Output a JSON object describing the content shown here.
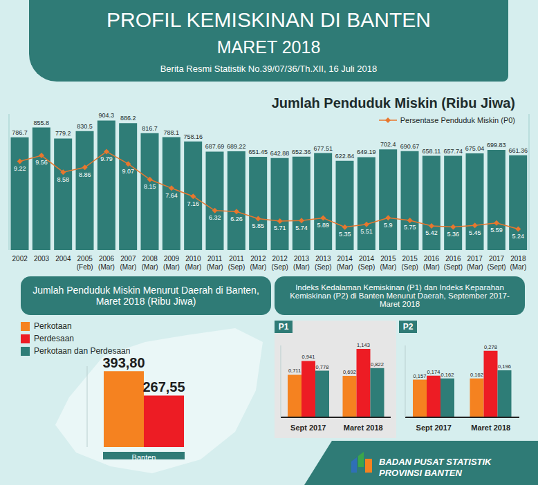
{
  "header": {
    "title": "PROFIL KEMISKINAN DI BANTEN",
    "subtitle": "MARET 2018",
    "source": "Berita Resmi Statistik No.39/07/36/Th.XII, 16 Juli 2018"
  },
  "index_panel": {
    "title": "Indeks Kedalaman Kemiskinan (P1) dan Indeks Keparahan Kemiskinan (P2) di Banten Menurut Daerah, September 2017-Maret 2018"
  },
  "footer": {
    "lines": [
      "BADAN PUSAT STATISTIK",
      "PROVINSI BANTEN"
    ]
  },
  "chart_data": [
    {
      "type": "bar",
      "title": "Jumlah Penduduk Miskin (Ribu Jiwa)",
      "categories": [
        "2002",
        "2003",
        "2004",
        "2005 (Feb)",
        "2006 (Mar)",
        "2007 (Mar)",
        "2008 (Mar)",
        "2009 (Mar)",
        "2010 (Mar)",
        "2011 (Mar)",
        "2011 (Sep)",
        "2012 (Mar)",
        "2012 (Sep)",
        "2013 (Mar)",
        "2013 (Sep)",
        "2014 (Mar)",
        "2014 (Sep)",
        "2015 (Mar)",
        "2015 (Sep)",
        "2016 (Mar)",
        "2016 (Sept)",
        "2017 (Mar)",
        "2017 (Sept)",
        "2018 (Mar)"
      ],
      "series": [
        {
          "type": "bar",
          "color": "#2f7d77",
          "values": [
            786.7,
            855.8,
            779.2,
            830.5,
            904.3,
            886.2,
            816.7,
            788.1,
            758.16,
            687.69,
            689.22,
            651.45,
            642.88,
            652.36,
            677.51,
            622.84,
            649.19,
            702.4,
            690.67,
            658.11,
            657.74,
            675.04,
            699.83,
            661.36
          ]
        },
        {
          "name": "Persentase Penduduk Miskin (P0)",
          "type": "line",
          "axis": "y2",
          "color": "#e8772e",
          "marker": "diamond",
          "values": [
            9.22,
            9.56,
            8.58,
            8.86,
            9.79,
            9.07,
            8.15,
            7.64,
            7.16,
            6.32,
            6.26,
            5.85,
            5.71,
            5.74,
            5.89,
            5.35,
            5.51,
            5.9,
            5.75,
            5.42,
            5.36,
            5.45,
            5.59,
            5.24
          ]
        }
      ],
      "ylim": [
        0,
        950
      ],
      "y2lim": [
        4,
        12
      ],
      "data_labels": true,
      "tick_labels": "x",
      "legend": "upper right",
      "grid": false
    },
    {
      "type": "bar",
      "title": "Jumlah Penduduk Miskin Menurut Daerah di Banten, Maret 2018 (Ribu Jiwa)",
      "categories": [
        "Banten"
      ],
      "series": [
        {
          "name": "Perkotaan",
          "color": "#f58220",
          "values": [
            393.8
          ],
          "value_labels": [
            "393,80"
          ]
        },
        {
          "name": "Perdesaan",
          "color": "#ed1c24",
          "values": [
            267.55
          ],
          "value_labels": [
            "267,55"
          ]
        },
        {
          "name": "Perkotaan dan Perdesaan",
          "color": "#2e7d77",
          "values": [
            null
          ]
        }
      ],
      "ylim": [
        0,
        420
      ],
      "data_labels": true,
      "tick_labels": "x",
      "legend": "upper left",
      "grid": false
    },
    {
      "type": "bar",
      "title": "P1",
      "categories": [
        "Sept 2017",
        "Maret 2018"
      ],
      "series": [
        {
          "name": "Perkotaan",
          "color": "#f58220",
          "values": [
            0.711,
            0.692
          ],
          "value_labels": [
            "0,711",
            "0,692"
          ]
        },
        {
          "name": "Perdesaan",
          "color": "#ed1c24",
          "values": [
            0.941,
            1.143
          ],
          "value_labels": [
            "0,941",
            "1,143"
          ]
        },
        {
          "name": "Perkotaan dan Perdesaan",
          "color": "#2e7d77",
          "values": [
            0.778,
            0.822
          ],
          "value_labels": [
            "0,778",
            "0,822"
          ]
        }
      ],
      "ylim": [
        0,
        1.2
      ],
      "data_labels": true,
      "tick_labels": "x",
      "grid": false
    },
    {
      "type": "bar",
      "title": "P2",
      "categories": [
        "Sept 2017",
        "Maret 2018"
      ],
      "series": [
        {
          "name": "Perkotaan",
          "color": "#f58220",
          "values": [
            0.157,
            0.162
          ],
          "value_labels": [
            "0,157",
            "0,162"
          ]
        },
        {
          "name": "Perdesaan",
          "color": "#ed1c24",
          "values": [
            0.174,
            0.278
          ],
          "value_labels": [
            "0,174",
            "0,278"
          ]
        },
        {
          "name": "Perkotaan dan Perdesaan",
          "color": "#2e7d77",
          "values": [
            0.162,
            0.196
          ],
          "value_labels": [
            "0,162",
            "0,196"
          ]
        }
      ],
      "ylim": [
        0,
        0.3
      ],
      "data_labels": true,
      "tick_labels": "x",
      "grid": false
    }
  ]
}
